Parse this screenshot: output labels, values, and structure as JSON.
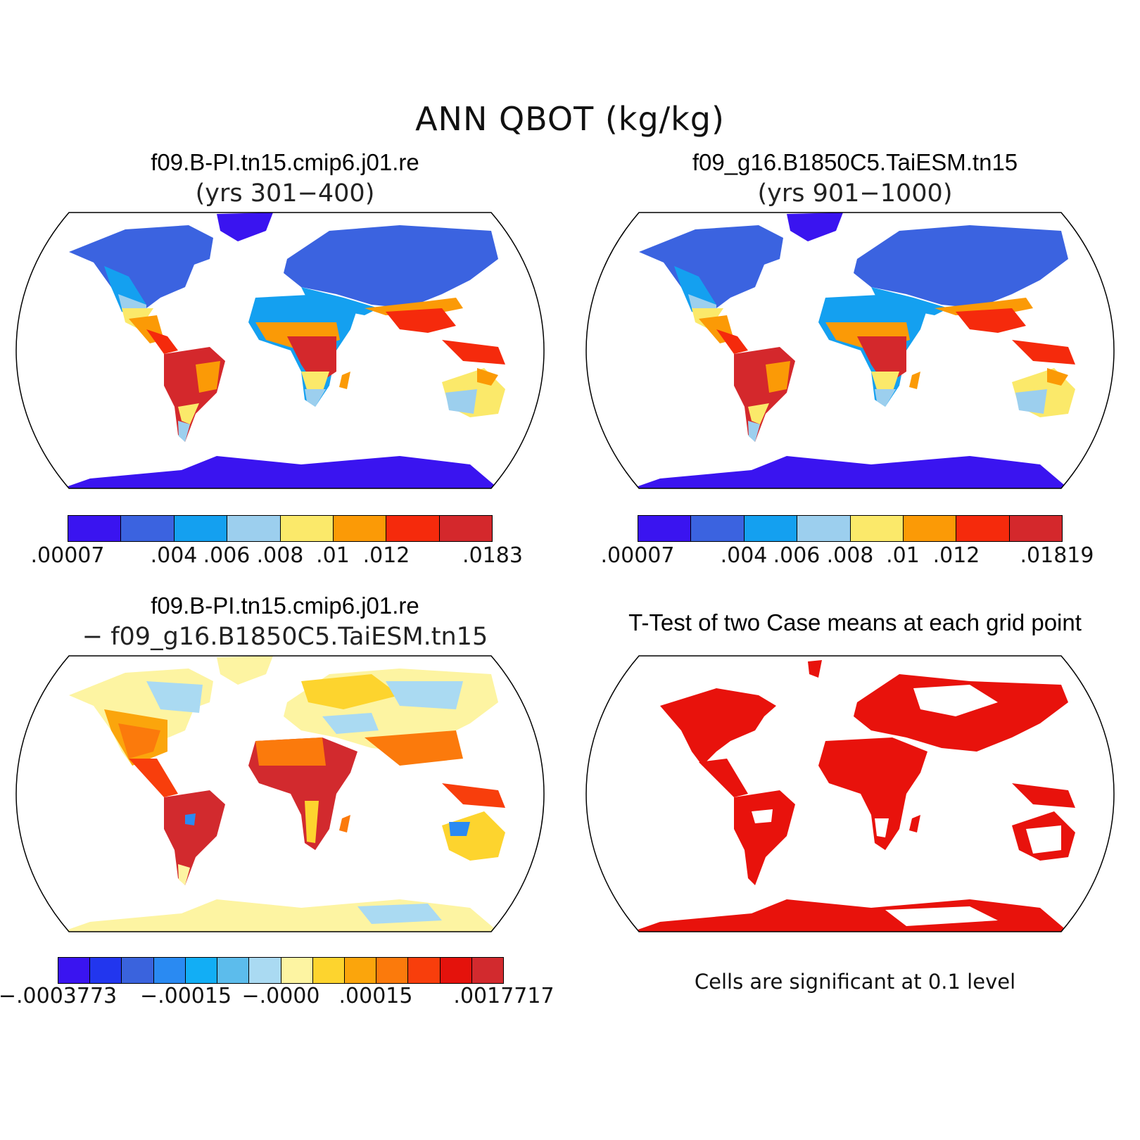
{
  "figure_title": "ANN QBOT (kg/kg)",
  "panels": [
    {
      "id": "case1",
      "title": "f09.B-PI.tn15.cmip6.j01.re",
      "subtitle": "(yrs 301−400)",
      "colorbar": {
        "colors": [
          "#3a14f0",
          "#3b63e0",
          "#14a0f0",
          "#9ccfee",
          "#fbe96a",
          "#fb9a06",
          "#f52a0c",
          "#d4282c"
        ],
        "tick_labels": [
          ".00007",
          ".004",
          ".006",
          ".008",
          ".01",
          ".012",
          ".0183"
        ]
      }
    },
    {
      "id": "case2",
      "title": "f09_g16.B1850C5.TaiESM.tn15",
      "subtitle": "(yrs 901−1000)",
      "colorbar": {
        "colors": [
          "#3a14f0",
          "#3b63e0",
          "#14a0f0",
          "#9ccfee",
          "#fbe96a",
          "#fb9a06",
          "#f52a0c",
          "#d4282c"
        ],
        "tick_labels": [
          ".00007",
          ".004",
          ".006",
          ".008",
          ".01",
          ".012",
          ".01819"
        ]
      }
    },
    {
      "id": "diff",
      "title": "f09.B-PI.tn15.cmip6.j01.re",
      "subtitle": "− f09_g16.B1850C5.TaiESM.tn15",
      "colorbar": {
        "colors": [
          "#3a14f0",
          "#2236ee",
          "#3a63dd",
          "#2a8af2",
          "#12aef5",
          "#5cbcec",
          "#aadaf2",
          "#fdf4a2",
          "#fdd42e",
          "#fba50c",
          "#fb7a0c",
          "#f83e0c",
          "#e4120c",
          "#d22a2e"
        ],
        "tick_labels": [
          "−.0003773",
          "−.00015",
          "−.0000",
          ".00015",
          ".0017717"
        ]
      }
    },
    {
      "id": "ttest",
      "title": "T-Test of two Case means at each grid point",
      "note": "Cells are significant at 0.1 level",
      "significant_color": "#e8120c"
    }
  ]
}
